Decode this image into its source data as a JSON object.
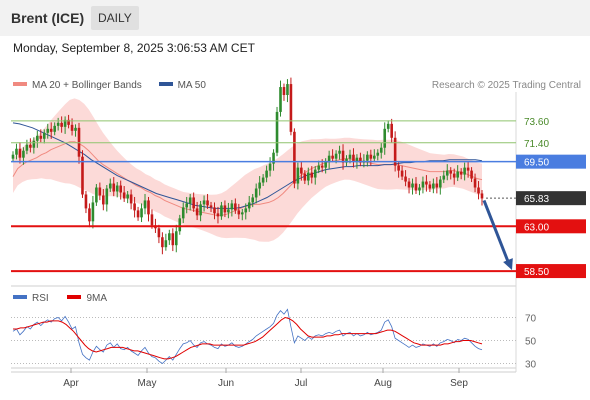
{
  "header": {
    "title": "Brent (ICE)",
    "timeframe": "DAILY"
  },
  "timestamp": "Monday, September 8, 2025 3:06:53 AM CET",
  "legend": {
    "bollinger": {
      "label": "MA 20 + Bollinger Bands",
      "color": "#f08a80"
    },
    "ma50": {
      "label": "MA 50",
      "color": "#2f5597"
    }
  },
  "credit": "Research © 2025 Trading Central",
  "rsi_legend": {
    "rsi": {
      "label": "RSI",
      "color": "#4472c4"
    },
    "ma9": {
      "label": "9MA",
      "color": "#e00000"
    }
  },
  "chart_data": [
    {
      "type": "candlestick",
      "x_tick_labels": [
        "Apr",
        "May",
        "Jun",
        "Jul",
        "Aug",
        "Sep"
      ],
      "ylim": [
        57.3,
        76.0
      ],
      "price_levels": [
        {
          "value": 73.6,
          "label": "73.60",
          "kind": "resistance-thin",
          "color": "#8fc46e"
        },
        {
          "value": 71.4,
          "label": "71.40",
          "kind": "resistance-thin",
          "color": "#8fc46e"
        },
        {
          "value": 69.5,
          "label": "69.50",
          "kind": "pivot",
          "color": "#4a7de0"
        },
        {
          "value": 65.83,
          "label": "65.83",
          "kind": "last-price",
          "color": "#333333"
        },
        {
          "value": 63.0,
          "label": "63.00",
          "kind": "support",
          "color": "#e31010"
        },
        {
          "value": 58.5,
          "label": "58.50",
          "kind": "support",
          "color": "#e31010"
        }
      ],
      "forecast_arrow": {
        "from": 65.8,
        "to": 58.6
      },
      "close": [
        70.2,
        70.8,
        69.9,
        70.6,
        71.2,
        70.9,
        71.6,
        72.1,
        71.8,
        72.4,
        72.8,
        72.5,
        73.1,
        73.4,
        73.0,
        73.7,
        73.2,
        72.6,
        72.9,
        70.0,
        66.2,
        64.8,
        63.5,
        65.4,
        66.9,
        66.1,
        65.2,
        66.8,
        67.3,
        66.5,
        67.1,
        66.4,
        65.8,
        66.2,
        65.3,
        64.6,
        63.9,
        64.8,
        65.6,
        64.2,
        63.1,
        62.8,
        61.9,
        60.9,
        61.6,
        62.3,
        61.1,
        62.5,
        63.8,
        64.9,
        65.3,
        65.9,
        64.8,
        64.1,
        65.2,
        65.6,
        65.1,
        64.9,
        64.3,
        64.0,
        65.1,
        64.4,
        64.7,
        65.3,
        64.6,
        64.2,
        64.4,
        64.8,
        65.4,
        65.9,
        66.8,
        67.4,
        67.9,
        68.6,
        69.3,
        70.4,
        74.5,
        77.0,
        76.2,
        77.3,
        72.5,
        67.3,
        68.9,
        68.3,
        67.6,
        68.4,
        67.9,
        68.7,
        69.1,
        68.9,
        69.5,
        70.1,
        69.8,
        70.3,
        70.6,
        69.4,
        69.8,
        70.2,
        69.5,
        69.9,
        69.4,
        69.6,
        70.2,
        69.8,
        70.1,
        70.4,
        70.9,
        72.8,
        73.3,
        71.9,
        69.1,
        68.6,
        68.0,
        67.5,
        66.9,
        67.3,
        66.6,
        66.9,
        67.5,
        67.2,
        66.8,
        67.3,
        66.9,
        67.7,
        68.1,
        68.6,
        68.3,
        67.9,
        68.5,
        68.2,
        68.9,
        68.6,
        67.8,
        66.9,
        66.3,
        65.8
      ],
      "ma20": [
        68.0,
        68.8,
        69.2,
        69.5,
        69.7,
        69.9,
        70.2,
        70.4,
        70.7,
        70.9,
        71.1,
        71.3,
        71.5,
        71.5,
        71.3,
        71.0,
        70.6,
        70.1,
        69.6,
        69.2,
        68.9,
        68.6,
        68.3,
        68.0,
        67.7,
        67.4,
        67.1,
        66.9,
        66.6,
        66.4,
        66.1,
        65.9,
        65.6,
        65.4,
        65.2,
        65.0,
        64.8,
        64.7,
        64.6,
        64.5,
        64.4,
        64.3,
        64.2,
        64.1,
        64.1,
        64.2,
        64.4,
        64.6,
        64.8,
        65.0,
        65.1,
        65.2,
        65.2,
        65.3,
        65.4,
        65.6,
        65.9,
        66.3,
        66.8,
        67.3,
        67.8,
        68.2,
        68.5,
        68.8,
        69.0,
        69.2,
        69.4,
        69.5,
        69.6,
        69.7,
        69.8,
        69.8,
        69.7,
        69.6,
        69.5,
        69.4,
        69.3,
        69.2,
        69.2,
        69.2,
        69.2,
        69.2,
        69.1,
        69.0,
        68.9,
        68.8,
        68.7,
        68.6,
        68.5,
        68.5,
        68.5,
        68.5,
        68.6,
        68.6,
        68.5,
        68.4,
        68.2,
        68.0,
        67.8,
        67.7
      ],
      "ma50": [
        73.4,
        73.3,
        73.1,
        72.9,
        72.6,
        72.3,
        72.0,
        71.7,
        71.4,
        71.0,
        70.6,
        70.2,
        69.7,
        69.3,
        68.9,
        68.5,
        68.1,
        67.8,
        67.5,
        67.2,
        66.9,
        66.6,
        66.3,
        66.1,
        65.9,
        65.7,
        65.5,
        65.3,
        65.1,
        65.0,
        64.9,
        64.8,
        64.8,
        64.8,
        64.8,
        64.9,
        65.1,
        65.3,
        65.6,
        65.9,
        66.3,
        66.7,
        67.1,
        67.5,
        67.8,
        68.1,
        68.3,
        68.5,
        68.7,
        68.8,
        68.9,
        69.0,
        69.0,
        69.1,
        69.1,
        69.1,
        69.1,
        69.2,
        69.2,
        69.3,
        69.4,
        69.4,
        69.5,
        69.5,
        69.6,
        69.6,
        69.6,
        69.7,
        69.7,
        69.7,
        69.7,
        69.7,
        69.6
      ]
    },
    {
      "type": "line",
      "title": "RSI",
      "y_tick_labels": [
        "70",
        "50",
        "30"
      ],
      "ylim": [
        20,
        80
      ],
      "rsi": [
        58,
        60,
        55,
        58,
        62,
        60,
        64,
        66,
        63,
        66,
        68,
        66,
        69,
        70,
        67,
        71,
        66,
        60,
        62,
        48,
        38,
        35,
        33,
        40,
        45,
        42,
        40,
        46,
        48,
        44,
        47,
        43,
        42,
        44,
        41,
        39,
        37,
        41,
        44,
        39,
        36,
        35,
        32,
        30,
        33,
        36,
        33,
        38,
        43,
        47,
        48,
        50,
        46,
        44,
        48,
        49,
        47,
        46,
        44,
        43,
        47,
        45,
        46,
        48,
        45,
        44,
        45,
        47,
        49,
        51,
        54,
        56,
        58,
        60,
        62,
        65,
        72,
        76,
        73,
        77,
        62,
        48,
        54,
        52,
        50,
        53,
        51,
        54,
        55,
        54,
        56,
        57,
        56,
        58,
        59,
        54,
        56,
        57,
        54,
        56,
        54,
        55,
        57,
        55,
        56,
        57,
        59,
        66,
        68,
        62,
        52,
        50,
        48,
        46,
        44,
        46,
        44,
        45,
        47,
        46,
        45,
        47,
        45,
        48,
        49,
        51,
        50,
        48,
        51,
        50,
        52,
        51,
        48,
        45,
        43,
        42
      ],
      "rsi_ma9": [
        60,
        60,
        61,
        61,
        62,
        63,
        64,
        65,
        66,
        66,
        67,
        67,
        67,
        66,
        64,
        61,
        58,
        54,
        50,
        46,
        43,
        41,
        40,
        41,
        42,
        43,
        44,
        44,
        44,
        44,
        43,
        42,
        41,
        41,
        40,
        39,
        38,
        37,
        36,
        35,
        34,
        34,
        35,
        36,
        38,
        40,
        42,
        44,
        45,
        46,
        47,
        47,
        47,
        46,
        46,
        46,
        46,
        46,
        46,
        46,
        46,
        46,
        47,
        48,
        49,
        51,
        53,
        56,
        59,
        62,
        65,
        68,
        70,
        69,
        67,
        64,
        60,
        57,
        54,
        53,
        53,
        53,
        53,
        54,
        54,
        55,
        55,
        56,
        56,
        56,
        56,
        56,
        56,
        56,
        56,
        56,
        56,
        57,
        58,
        59,
        59,
        58,
        56,
        54,
        52,
        50,
        48,
        47,
        46,
        46,
        46,
        46,
        46,
        46,
        47,
        47,
        48,
        49,
        49,
        50,
        50,
        50,
        49,
        48,
        47
      ]
    }
  ]
}
